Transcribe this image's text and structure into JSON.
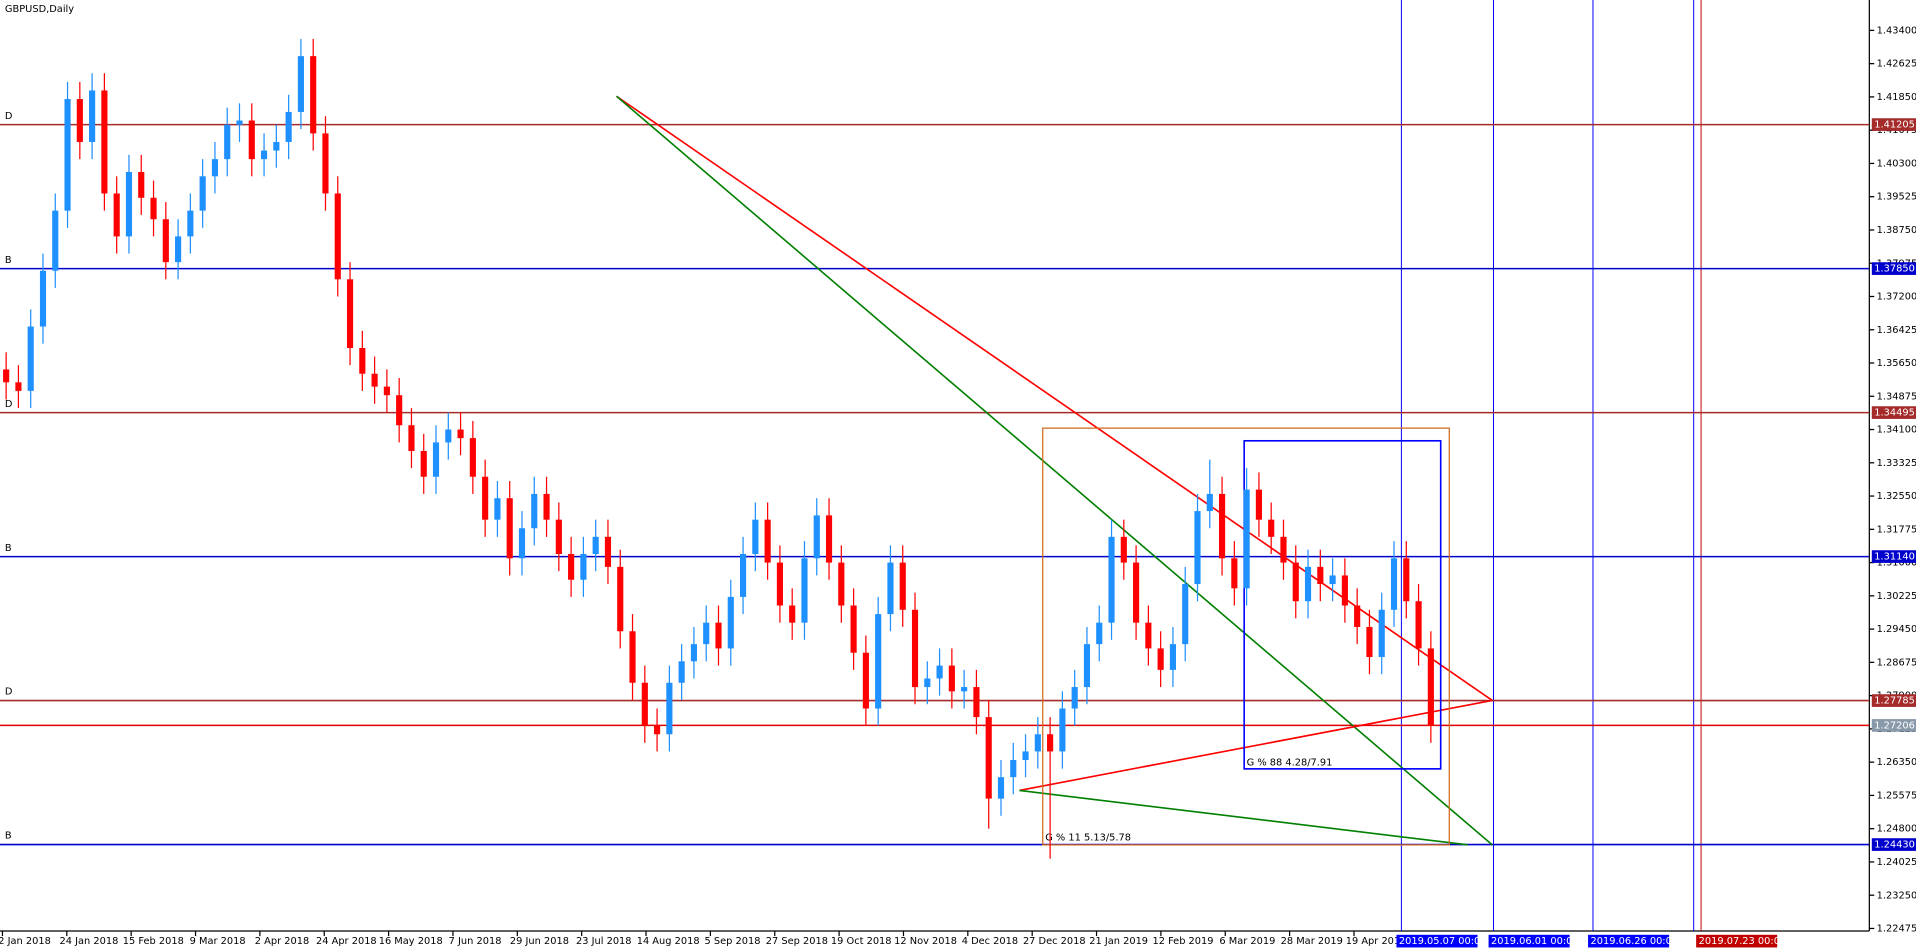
{
  "chart_data": {
    "type": "candlestick",
    "title": "GBPUSD,Daily",
    "categories": [
      "2 Jan 2018",
      "24 Jan 2018",
      "15 Feb 2018",
      "9 Mar 2018",
      "2 Apr 2018",
      "24 Apr 2018",
      "16 May 2018",
      "7 Jun 2018",
      "29 Jun 2018",
      "23 Jul 2018",
      "14 Aug 2018",
      "5 Sep 2018",
      "27 Sep 2018",
      "19 Oct 2018",
      "12 Nov 2018",
      "4 Dec 2018",
      "27 Dec 2018",
      "21 Jan 2019",
      "12 Feb 2019",
      "6 Mar 2019",
      "28 Mar 2019",
      "19 Apr 2019"
    ],
    "bull_color": "#1e90ff",
    "bear_color": "#ff0000",
    "open": [
      1.355,
      1.352,
      1.35,
      1.365,
      1.378,
      1.392,
      1.418,
      1.408,
      1.42,
      1.396,
      1.386,
      1.401,
      1.395,
      1.39,
      1.38,
      1.386,
      1.392,
      1.4,
      1.404,
      1.412,
      1.413,
      1.404,
      1.406,
      1.408,
      1.415,
      1.428,
      1.41,
      1.396,
      1.376,
      1.36,
      1.354,
      1.351,
      1.349,
      1.342,
      1.336,
      1.33,
      1.338,
      1.341,
      1.339,
      1.33,
      1.32,
      1.325,
      1.311,
      1.318,
      1.326,
      1.32,
      1.312,
      1.306,
      1.312,
      1.316,
      1.309,
      1.294,
      1.282,
      1.272,
      1.27,
      1.282,
      1.287,
      1.291,
      1.296,
      1.29,
      1.302,
      1.312,
      1.32,
      1.31,
      1.3,
      1.296,
      1.311,
      1.321,
      1.31,
      1.3,
      1.289,
      1.276,
      1.298,
      1.31,
      1.299,
      1.281,
      1.283,
      1.286,
      1.28,
      1.281,
      1.274,
      1.255,
      1.26,
      1.264,
      1.266,
      1.27,
      1.266,
      1.276,
      1.281,
      1.291,
      1.296,
      1.316,
      1.31,
      1.296,
      1.29,
      1.285,
      1.291,
      1.305,
      1.322,
      1.326,
      1.311,
      1.304,
      1.327,
      1.32,
      1.316,
      1.31,
      1.301,
      1.309,
      1.305,
      1.307,
      1.3,
      1.295,
      1.288,
      1.299,
      1.311,
      1.301,
      1.29
    ],
    "high": [
      1.359,
      1.356,
      1.369,
      1.382,
      1.396,
      1.422,
      1.422,
      1.424,
      1.424,
      1.4,
      1.405,
      1.405,
      1.399,
      1.394,
      1.39,
      1.396,
      1.404,
      1.408,
      1.416,
      1.417,
      1.417,
      1.41,
      1.412,
      1.419,
      1.432,
      1.432,
      1.414,
      1.4,
      1.38,
      1.364,
      1.358,
      1.355,
      1.353,
      1.346,
      1.34,
      1.342,
      1.345,
      1.345,
      1.343,
      1.334,
      1.329,
      1.329,
      1.322,
      1.33,
      1.33,
      1.324,
      1.316,
      1.316,
      1.32,
      1.32,
      1.313,
      1.298,
      1.286,
      1.276,
      1.286,
      1.291,
      1.295,
      1.3,
      1.3,
      1.306,
      1.316,
      1.324,
      1.324,
      1.314,
      1.304,
      1.315,
      1.325,
      1.325,
      1.314,
      1.304,
      1.293,
      1.302,
      1.314,
      1.314,
      1.303,
      1.287,
      1.29,
      1.29,
      1.285,
      1.285,
      1.278,
      1.264,
      1.268,
      1.27,
      1.274,
      1.274,
      1.28,
      1.285,
      1.295,
      1.3,
      1.32,
      1.32,
      1.314,
      1.3,
      1.294,
      1.295,
      1.309,
      1.326,
      1.334,
      1.33,
      1.315,
      1.332,
      1.331,
      1.324,
      1.32,
      1.314,
      1.313,
      1.313,
      1.311,
      1.311,
      1.304,
      1.299,
      1.303,
      1.315,
      1.315,
      1.305,
      1.294
    ],
    "low": [
      1.348,
      1.346,
      1.346,
      1.361,
      1.374,
      1.388,
      1.404,
      1.404,
      1.392,
      1.382,
      1.382,
      1.391,
      1.386,
      1.376,
      1.376,
      1.382,
      1.388,
      1.396,
      1.4,
      1.408,
      1.4,
      1.4,
      1.402,
      1.404,
      1.411,
      1.406,
      1.392,
      1.372,
      1.356,
      1.35,
      1.347,
      1.345,
      1.338,
      1.332,
      1.326,
      1.326,
      1.334,
      1.335,
      1.326,
      1.316,
      1.316,
      1.307,
      1.307,
      1.314,
      1.316,
      1.308,
      1.302,
      1.302,
      1.308,
      1.305,
      1.29,
      1.278,
      1.268,
      1.266,
      1.266,
      1.278,
      1.283,
      1.287,
      1.286,
      1.286,
      1.298,
      1.308,
      1.306,
      1.296,
      1.292,
      1.292,
      1.307,
      1.306,
      1.296,
      1.285,
      1.272,
      1.272,
      1.294,
      1.295,
      1.277,
      1.277,
      1.279,
      1.276,
      1.276,
      1.27,
      1.248,
      1.251,
      1.256,
      1.26,
      1.262,
      1.241,
      1.262,
      1.272,
      1.277,
      1.287,
      1.292,
      1.306,
      1.292,
      1.286,
      1.281,
      1.281,
      1.287,
      1.301,
      1.318,
      1.307,
      1.3,
      1.3,
      1.316,
      1.312,
      1.306,
      1.297,
      1.297,
      1.301,
      1.301,
      1.296,
      1.291,
      1.284,
      1.284,
      1.295,
      1.297,
      1.286,
      1.268
    ],
    "close": [
      1.352,
      1.35,
      1.365,
      1.378,
      1.392,
      1.418,
      1.408,
      1.42,
      1.396,
      1.386,
      1.401,
      1.395,
      1.39,
      1.38,
      1.386,
      1.392,
      1.4,
      1.404,
      1.412,
      1.413,
      1.404,
      1.406,
      1.408,
      1.415,
      1.428,
      1.41,
      1.396,
      1.376,
      1.36,
      1.354,
      1.351,
      1.349,
      1.342,
      1.336,
      1.33,
      1.338,
      1.341,
      1.339,
      1.33,
      1.32,
      1.325,
      1.311,
      1.318,
      1.326,
      1.32,
      1.312,
      1.306,
      1.312,
      1.316,
      1.309,
      1.294,
      1.282,
      1.272,
      1.27,
      1.282,
      1.287,
      1.291,
      1.296,
      1.29,
      1.302,
      1.312,
      1.32,
      1.31,
      1.3,
      1.296,
      1.311,
      1.321,
      1.31,
      1.3,
      1.289,
      1.276,
      1.298,
      1.31,
      1.299,
      1.281,
      1.283,
      1.286,
      1.28,
      1.281,
      1.274,
      1.255,
      1.26,
      1.264,
      1.266,
      1.27,
      1.266,
      1.276,
      1.281,
      1.291,
      1.296,
      1.316,
      1.31,
      1.296,
      1.29,
      1.285,
      1.291,
      1.305,
      1.322,
      1.326,
      1.311,
      1.304,
      1.327,
      1.32,
      1.316,
      1.31,
      1.301,
      1.309,
      1.305,
      1.307,
      1.3,
      1.295,
      1.288,
      1.299,
      1.311,
      1.301,
      1.29,
      1.272
    ],
    "ylim": [
      1.22416,
      1.44108
    ],
    "yticks": [
      {
        "value": 1.434,
        "label": "1.43400"
      },
      1.42625,
      {
        "value": 1.4185,
        "label": "1.41850"
      },
      1.41075,
      {
        "value": 1.403,
        "label": "1.40300"
      },
      1.39525,
      {
        "value": 1.3875,
        "label": "1.38750"
      },
      1.37975,
      {
        "value": 1.372,
        "label": "1.37200"
      },
      1.36425,
      {
        "value": 1.3565,
        "label": "1.35650"
      },
      1.34875,
      {
        "value": 1.341,
        "label": "1.34100"
      },
      1.33325,
      {
        "value": 1.3255,
        "label": "1.32550"
      },
      1.31775,
      {
        "value": 1.31,
        "label": "1.31000"
      },
      1.30225,
      {
        "value": 1.2945,
        "label": "1.29450"
      },
      1.28675,
      {
        "value": 1.279,
        "label": "1.27900"
      },
      1.27125,
      {
        "value": 1.2635,
        "label": "1.26350"
      },
      1.25575,
      {
        "value": 1.248,
        "label": "1.24800"
      },
      1.24025,
      {
        "value": 1.2325,
        "label": "1.23250"
      },
      1.22475
    ],
    "levels": [
      {
        "tag": "D",
        "price": 1.41205,
        "color": "#a52a2a"
      },
      {
        "tag": "B",
        "price": {
          "value": 1.3785,
          "label": "1.37850"
        },
        "color": "#0000cd"
      },
      {
        "tag": "D",
        "price": 1.34495,
        "color": "#a52a2a"
      },
      {
        "tag": "B",
        "price": {
          "value": 1.3114,
          "label": "1.31140"
        },
        "color": "#0000cd"
      },
      {
        "tag": "D",
        "price": 1.27785,
        "color": "#a52a2a"
      },
      {
        "tag": "B",
        "price": {
          "value": 1.2443,
          "label": "1.24430"
        },
        "color": "#0000cd"
      }
    ],
    "current_price": 1.27206,
    "current_color": "#e00000",
    "markers": [
      {
        "label": "2019.05.07 00:00",
        "color": "#0000ff"
      },
      {
        "label": "2019.06.01 00:00",
        "color": "#0000ff"
      },
      {
        "label": "2019.06.26 00:00",
        "color": "#0000ff"
      },
      {
        "label": "2019.07.23 00:00",
        "color": "#c00000"
      }
    ],
    "annotations": [
      "G % 88 4.28/7.91",
      "G % 11 5.13/5.78"
    ]
  }
}
